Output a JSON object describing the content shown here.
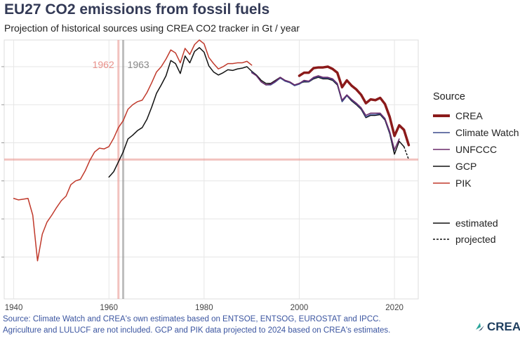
{
  "title": "EU27 CO2 emissions from fossil fuels",
  "subtitle": "Projection of historical sources using CREA CO2 tracker in Gt / year",
  "legend": {
    "title": "Source",
    "items": [
      {
        "label": "CREA",
        "color": "#8b1a1a"
      },
      {
        "label": "Climate Watch",
        "color": "#3a4a8c"
      },
      {
        "label": "UNFCCC",
        "color": "#6a2a6a"
      },
      {
        "label": "GCP",
        "color": "#111111"
      },
      {
        "label": "PIK",
        "color": "#c0392b"
      }
    ],
    "line_types": [
      {
        "label": "estimated",
        "style": "solid"
      },
      {
        "label": "projected",
        "style": "dashed"
      }
    ]
  },
  "caption": {
    "line1": "Source: Climate Watch and CREA's own estimates based on ENTSOE, ENTSOG, EUROSTAT and IPCC.",
    "line2": "Agriculture and LULUCF are not included. GCP and PIK data projected to 2024 based on CREA's estimates."
  },
  "logo": {
    "text": "CREA",
    "icon": "crea-logo-icon"
  },
  "chart_data": {
    "type": "line",
    "title": "EU27 CO2 emissions from fossil fuels",
    "subtitle": "Projection of historical sources using CREA CO2 tracker in Gt / year",
    "xlabel": "",
    "ylabel": "",
    "xlim": [
      1938,
      2025
    ],
    "ylim": [
      0.45,
      3.85
    ],
    "x_ticks": [
      1940,
      1960,
      1980,
      2000,
      2020
    ],
    "y_ticks_labeled": false,
    "grid": true,
    "legend_position": "right",
    "annotations": [
      {
        "type": "vline",
        "x": 1962,
        "label": "1962",
        "color": "#e8908a"
      },
      {
        "type": "vline",
        "x": 1963,
        "label": "1963",
        "color": "#888888"
      },
      {
        "type": "hline",
        "y": 2.28,
        "color": "#e8908a"
      }
    ],
    "series": [
      {
        "name": "PIK",
        "color": "#c0392b",
        "width": 1.5,
        "x": [
          1940,
          1941,
          1942,
          1943,
          1944,
          1945,
          1946,
          1947,
          1948,
          1949,
          1950,
          1951,
          1952,
          1953,
          1954,
          1955,
          1956,
          1957,
          1958,
          1959,
          1960,
          1961,
          1962,
          1963,
          1964,
          1965,
          1966,
          1967,
          1968,
          1969,
          1970,
          1971,
          1972,
          1973,
          1974,
          1975,
          1976,
          1977,
          1978,
          1979,
          1980,
          1981,
          1982,
          1983,
          1984,
          1985,
          1986,
          1987,
          1988,
          1989,
          1990
        ],
        "y": [
          1.77,
          1.75,
          1.76,
          1.77,
          1.55,
          0.95,
          1.3,
          1.46,
          1.55,
          1.65,
          1.74,
          1.8,
          1.95,
          2.0,
          2.02,
          2.13,
          2.27,
          2.38,
          2.43,
          2.42,
          2.45,
          2.56,
          2.7,
          2.79,
          2.94,
          3.0,
          3.04,
          3.06,
          3.16,
          3.29,
          3.43,
          3.5,
          3.6,
          3.72,
          3.68,
          3.55,
          3.74,
          3.66,
          3.79,
          3.85,
          3.8,
          3.62,
          3.54,
          3.47,
          3.5,
          3.54,
          3.54,
          3.55,
          3.55,
          3.57,
          3.52
        ]
      },
      {
        "name": "GCP",
        "color": "#111111",
        "width": 1.5,
        "dashed_from_index": 62,
        "x": [
          1960,
          1961,
          1962,
          1963,
          1964,
          1965,
          1966,
          1967,
          1968,
          1969,
          1970,
          1971,
          1972,
          1973,
          1974,
          1975,
          1976,
          1977,
          1978,
          1979,
          1980,
          1981,
          1982,
          1983,
          1984,
          1985,
          1986,
          1987,
          1988,
          1989,
          1990,
          1991,
          1992,
          1993,
          1994,
          1995,
          1996,
          1997,
          1998,
          1999,
          2000,
          2001,
          2002,
          2003,
          2004,
          2005,
          2006,
          2007,
          2008,
          2009,
          2010,
          2011,
          2012,
          2013,
          2014,
          2015,
          2016,
          2017,
          2018,
          2019,
          2020,
          2021,
          2022,
          2023
        ],
        "y": [
          2.05,
          2.12,
          2.25,
          2.38,
          2.55,
          2.6,
          2.66,
          2.7,
          2.81,
          2.97,
          3.15,
          3.26,
          3.38,
          3.58,
          3.54,
          3.41,
          3.64,
          3.55,
          3.7,
          3.75,
          3.69,
          3.51,
          3.43,
          3.39,
          3.42,
          3.46,
          3.45,
          3.47,
          3.48,
          3.5,
          3.44,
          3.39,
          3.32,
          3.28,
          3.28,
          3.32,
          3.36,
          3.32,
          3.3,
          3.26,
          3.28,
          3.3,
          3.3,
          3.34,
          3.36,
          3.34,
          3.34,
          3.32,
          3.26,
          3.04,
          3.12,
          3.05,
          3.0,
          2.94,
          2.83,
          2.86,
          2.86,
          2.87,
          2.8,
          2.62,
          2.35,
          2.52,
          2.45,
          2.28
        ]
      },
      {
        "name": "Climate Watch",
        "color": "#3a4a8c",
        "width": 1.5,
        "x": [
          1990,
          1991,
          1992,
          1993,
          1994,
          1995,
          1996,
          1997,
          1998,
          1999,
          2000,
          2001,
          2002,
          2003,
          2004,
          2005,
          2006,
          2007,
          2008,
          2009,
          2010,
          2011,
          2012,
          2013,
          2014,
          2015,
          2016,
          2017,
          2018,
          2019,
          2020
        ],
        "y": [
          3.43,
          3.38,
          3.3,
          3.26,
          3.26,
          3.3,
          3.35,
          3.31,
          3.29,
          3.25,
          3.27,
          3.31,
          3.3,
          3.35,
          3.37,
          3.35,
          3.35,
          3.33,
          3.27,
          3.04,
          3.12,
          3.06,
          3.01,
          2.95,
          2.84,
          2.87,
          2.87,
          2.88,
          2.81,
          2.63,
          2.4
        ]
      },
      {
        "name": "UNFCCC",
        "color": "#6a2a6a",
        "width": 1.5,
        "x": [
          1990,
          1991,
          1992,
          1993,
          1994,
          1995,
          1996,
          1997,
          1998,
          1999,
          2000,
          2001,
          2002,
          2003,
          2004,
          2005,
          2006,
          2007,
          2008,
          2009,
          2010,
          2011,
          2012,
          2013,
          2014,
          2015,
          2016,
          2017,
          2018,
          2019,
          2020,
          2021
        ],
        "y": [
          3.42,
          3.38,
          3.3,
          3.26,
          3.27,
          3.31,
          3.36,
          3.32,
          3.3,
          3.26,
          3.28,
          3.32,
          3.31,
          3.36,
          3.38,
          3.36,
          3.36,
          3.34,
          3.28,
          3.06,
          3.13,
          3.07,
          3.02,
          2.96,
          2.86,
          2.89,
          2.89,
          2.89,
          2.82,
          2.65,
          2.41,
          2.55
        ]
      },
      {
        "name": "CREA",
        "color": "#8b1a1a",
        "width": 3.5,
        "x": [
          2000,
          2001,
          2002,
          2003,
          2004,
          2005,
          2006,
          2007,
          2008,
          2009,
          2010,
          2011,
          2012,
          2013,
          2014,
          2015,
          2016,
          2017,
          2018,
          2019,
          2020,
          2021,
          2022,
          2023
        ],
        "y": [
          3.38,
          3.42,
          3.42,
          3.48,
          3.49,
          3.49,
          3.5,
          3.47,
          3.42,
          3.23,
          3.32,
          3.25,
          3.2,
          3.13,
          3.02,
          3.07,
          3.06,
          3.09,
          3.01,
          2.84,
          2.59,
          2.73,
          2.67,
          2.47
        ]
      }
    ]
  }
}
